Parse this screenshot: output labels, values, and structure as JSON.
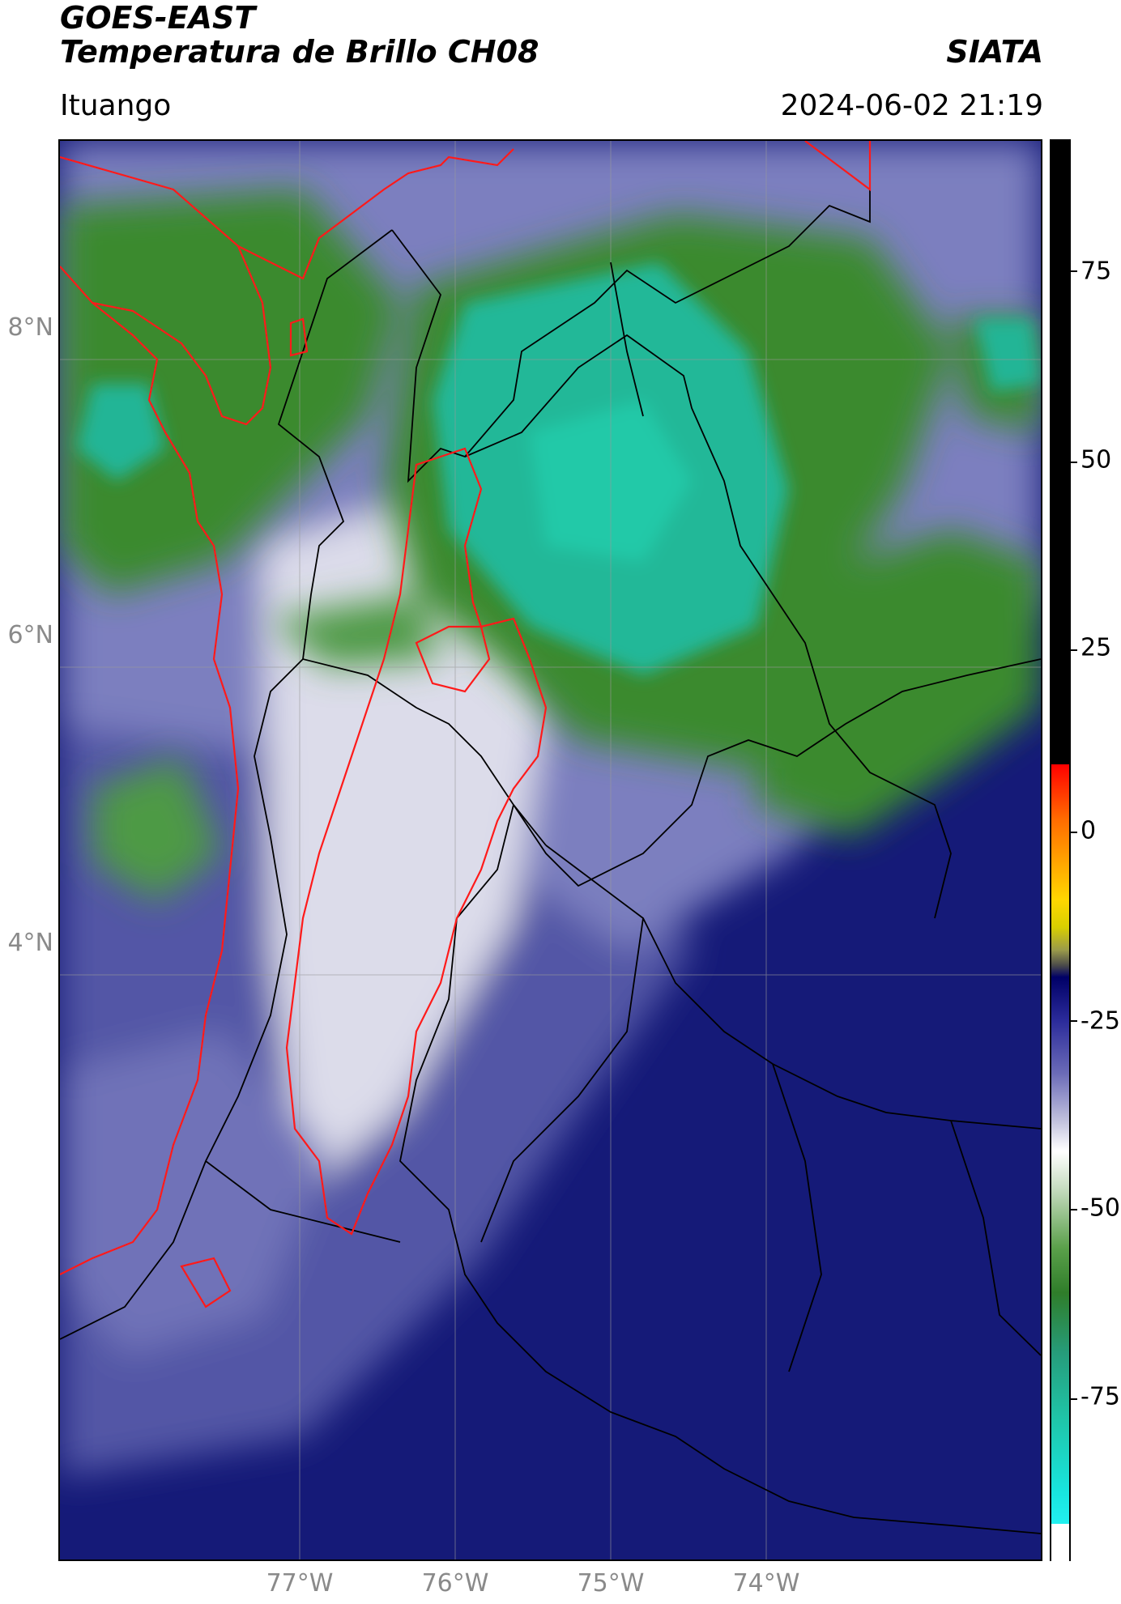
{
  "header": {
    "title_line1": "GOES-EAST",
    "title_line2": "Temperatura de Brillo CH08",
    "organization": "SIATA",
    "location": "Ituango",
    "datetime": "2024-06-02 21:19"
  },
  "axes": {
    "lat_labels": [
      "8°N",
      "6°N",
      "4°N"
    ],
    "lon_labels": [
      "77°W",
      "76°W",
      "75°W",
      "74°W"
    ]
  },
  "colorbar": {
    "ticks": [
      "75",
      "50",
      "25",
      "0",
      "-25",
      "-50",
      "-75"
    ],
    "colors": {
      "warm": "#000000",
      "hot": "#ff0000",
      "mid": "#ffd700",
      "cool_dark": "#0a0a7a",
      "cool_mid": "#5a5aa8",
      "white": "#f4f4f8",
      "green": "#3a8a2e",
      "teal": "#22c9a8",
      "cyan": "#22e0e0"
    }
  },
  "map_colors": {
    "land_border": "#000000",
    "region_border": "#ff1a1a",
    "gridline": "#9a9a9a"
  }
}
